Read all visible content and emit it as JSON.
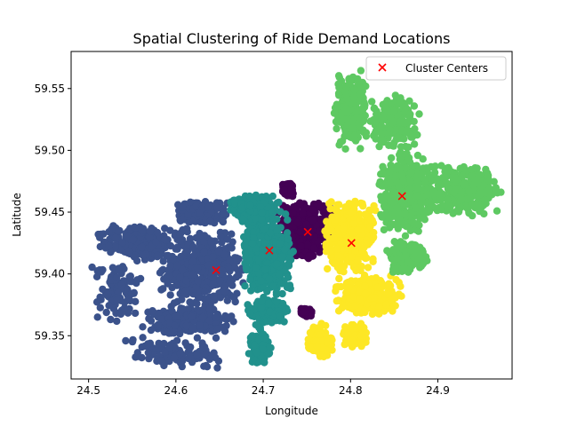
{
  "chart_data": {
    "type": "scatter",
    "title": "Spatial Clustering of Ride Demand Locations",
    "xlabel": "Longitude",
    "ylabel": "Latitude",
    "xlim": [
      24.48,
      24.985
    ],
    "ylim": [
      59.315,
      59.58
    ],
    "xticks": [
      24.5,
      24.6,
      24.7,
      24.8,
      24.9
    ],
    "xtick_labels": [
      "24.5",
      "24.6",
      "24.7",
      "24.8",
      "24.9"
    ],
    "yticks": [
      59.35,
      59.4,
      59.45,
      59.5,
      59.55
    ],
    "ytick_labels": [
      "59.35",
      "59.40",
      "59.45",
      "59.50",
      "59.55"
    ],
    "grid": false,
    "legend": {
      "position": "top-right",
      "entries": [
        {
          "label": "Cluster Centers",
          "marker": "x",
          "color": "#ff0000"
        }
      ]
    },
    "clusters": [
      {
        "color": "#440154",
        "center": [
          24.751,
          59.434
        ],
        "regions": [
          {
            "lon": [
              24.715,
              24.785
            ],
            "lat": [
              59.412,
              59.46
            ],
            "density": 1.0
          },
          {
            "lon": [
              24.722,
              24.735
            ],
            "lat": [
              59.462,
              59.474
            ],
            "density": 0.35
          },
          {
            "lon": [
              24.742,
              24.756
            ],
            "lat": [
              59.365,
              59.372
            ],
            "density": 0.3
          }
        ]
      },
      {
        "color": "#3b528b",
        "center": [
          24.646,
          59.403
        ],
        "regions": [
          {
            "lon": [
              24.58,
              24.68
            ],
            "lat": [
              59.37,
              59.44
            ],
            "density": 1.0
          },
          {
            "lon": [
              24.51,
              24.6
            ],
            "lat": [
              59.41,
              59.44
            ],
            "density": 0.55
          },
          {
            "lon": [
              24.6,
              24.66
            ],
            "lat": [
              59.44,
              59.46
            ],
            "density": 0.6
          },
          {
            "lon": [
              24.56,
              24.67
            ],
            "lat": [
              59.35,
              59.375
            ],
            "density": 0.6
          },
          {
            "lon": [
              24.5,
              24.56
            ],
            "lat": [
              59.36,
              59.41
            ],
            "density": 0.25
          },
          {
            "lon": [
              24.54,
              24.66
            ],
            "lat": [
              59.322,
              59.35
            ],
            "density": 0.25
          }
        ]
      },
      {
        "color": "#21918c",
        "center": [
          24.707,
          59.419
        ],
        "regions": [
          {
            "lon": [
              24.675,
              24.735
            ],
            "lat": [
              59.38,
              59.45
            ],
            "density": 1.0
          },
          {
            "lon": [
              24.66,
              24.72
            ],
            "lat": [
              59.44,
              59.465
            ],
            "density": 0.6
          },
          {
            "lon": [
              24.68,
              24.73
            ],
            "lat": [
              59.36,
              59.38
            ],
            "density": 0.5
          },
          {
            "lon": [
              24.68,
              24.71
            ],
            "lat": [
              59.324,
              59.36
            ],
            "density": 0.2
          }
        ]
      },
      {
        "color": "#fde725",
        "center": [
          24.801,
          59.425
        ],
        "regions": [
          {
            "lon": [
              24.77,
              24.83
            ],
            "lat": [
              59.4,
              59.46
            ],
            "density": 1.0
          },
          {
            "lon": [
              24.78,
              24.86
            ],
            "lat": [
              59.365,
              59.4
            ],
            "density": 0.6
          },
          {
            "lon": [
              24.75,
              24.78
            ],
            "lat": [
              59.33,
              59.36
            ],
            "density": 0.35
          },
          {
            "lon": [
              24.79,
              24.82
            ],
            "lat": [
              59.34,
              59.36
            ],
            "density": 0.2
          }
        ]
      },
      {
        "color": "#5ec962",
        "center": [
          24.859,
          59.463
        ],
        "regions": [
          {
            "lon": [
              24.83,
              24.9
            ],
            "lat": [
              59.43,
              59.5
            ],
            "density": 1.0
          },
          {
            "lon": [
              24.78,
              24.82
            ],
            "lat": [
              59.5,
              59.565
            ],
            "density": 0.6
          },
          {
            "lon": [
              24.82,
              24.88
            ],
            "lat": [
              59.5,
              59.545
            ],
            "density": 0.45
          },
          {
            "lon": [
              24.88,
              24.975
            ],
            "lat": [
              59.445,
              59.49
            ],
            "density": 0.6
          },
          {
            "lon": [
              24.84,
              24.89
            ],
            "lat": [
              59.4,
              59.43
            ],
            "density": 0.4
          }
        ]
      }
    ]
  }
}
